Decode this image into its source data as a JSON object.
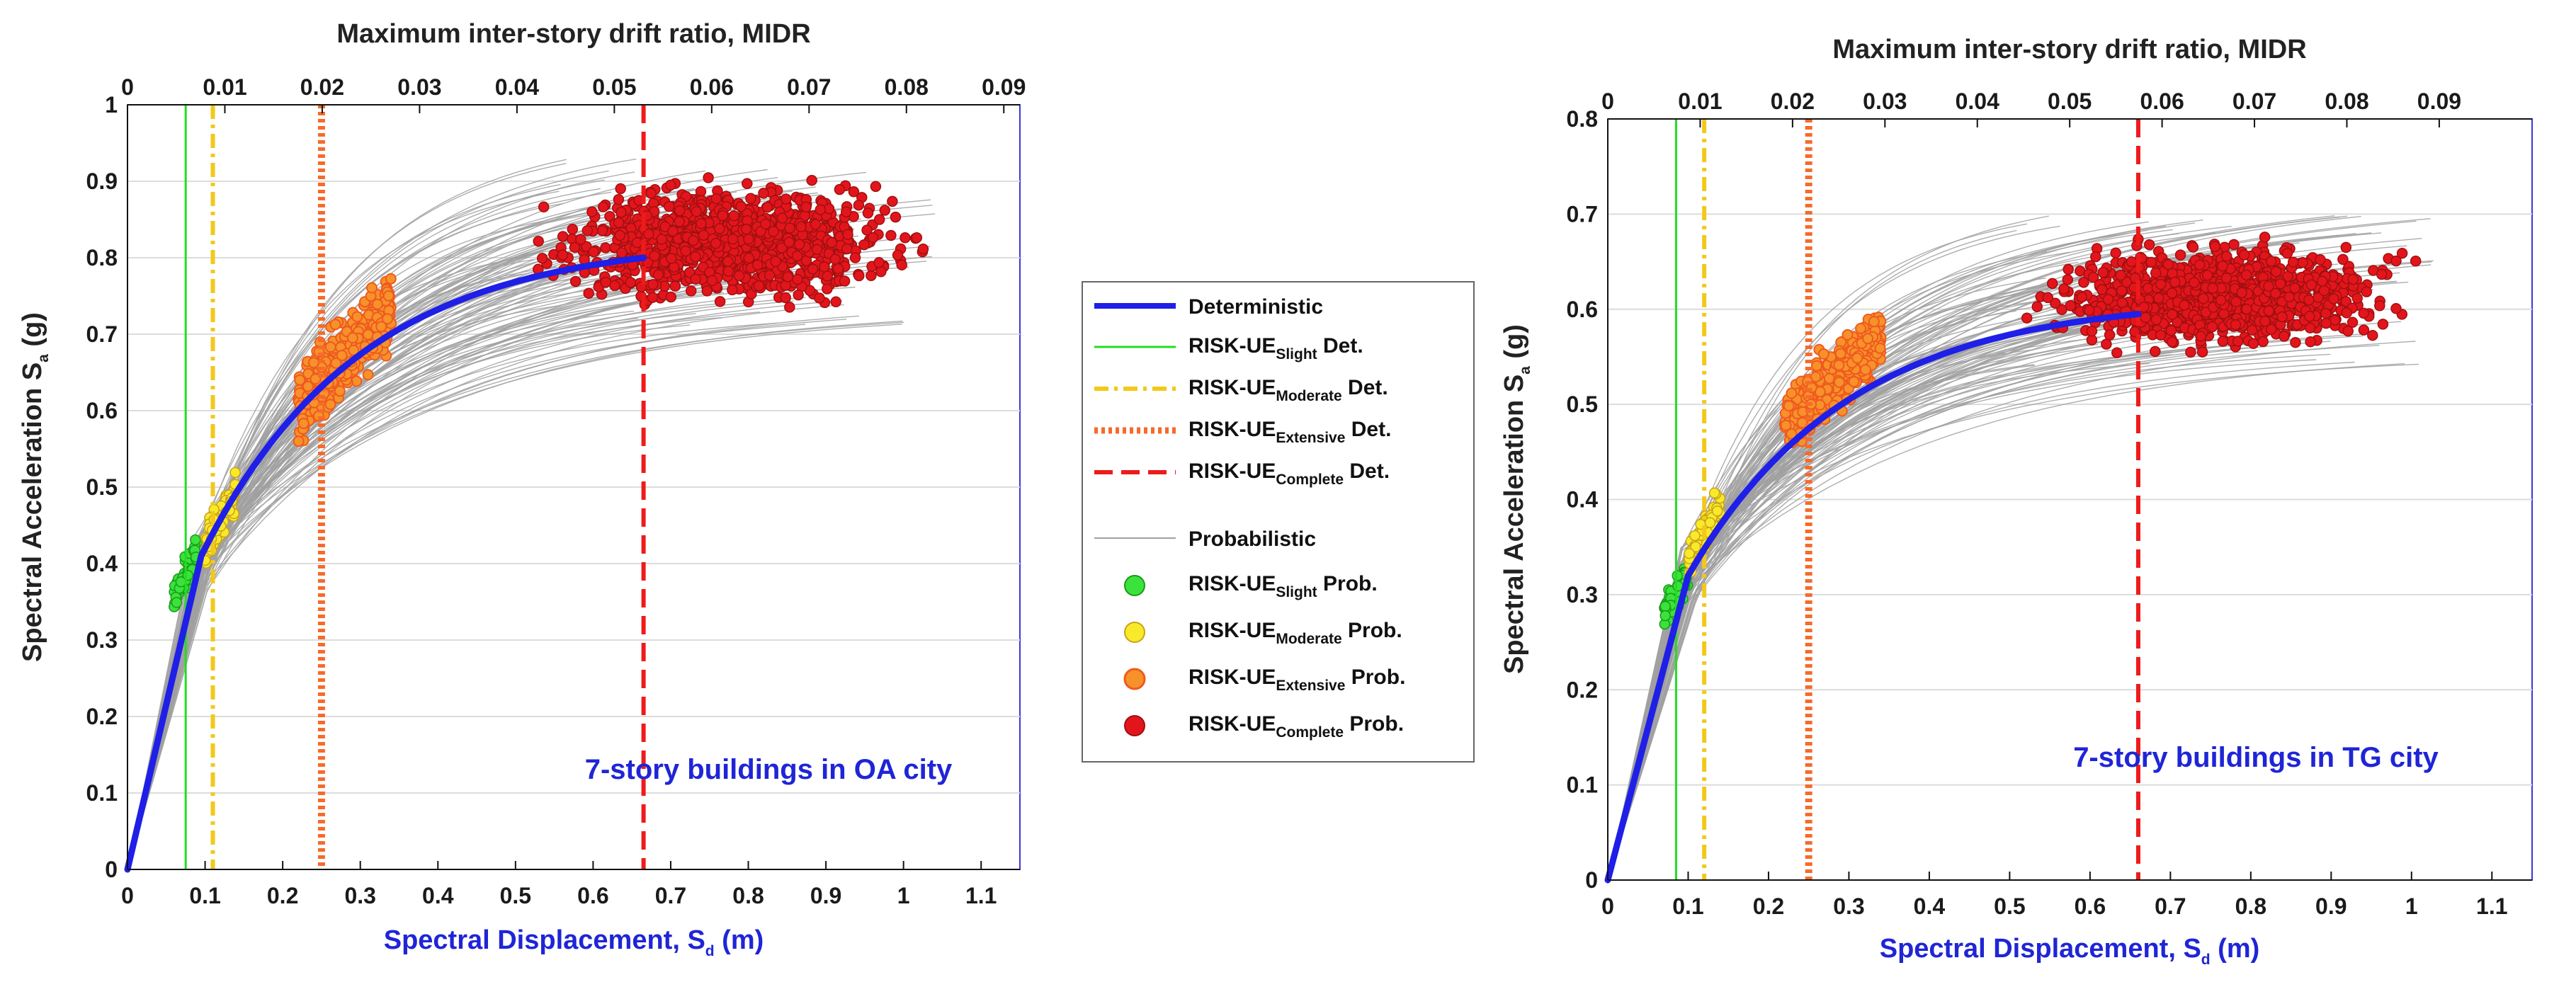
{
  "legend": {
    "entries": [
      {
        "key": "det",
        "base": "Deterministic",
        "sub": "",
        "suffix": ""
      },
      {
        "key": "slight_det",
        "base": "RISK-UE",
        "sub": "Slight",
        "suffix": " Det."
      },
      {
        "key": "moderate_det",
        "base": "RISK-UE",
        "sub": "Moderate",
        "suffix": " Det."
      },
      {
        "key": "extensive_det",
        "base": "RISK-UE",
        "sub": "Extensive",
        "suffix": " Det."
      },
      {
        "key": "complete_det",
        "base": "RISK-UE",
        "sub": "Complete",
        "suffix": " Det."
      },
      {
        "key": "prob",
        "base": "Probabilistic",
        "sub": "",
        "suffix": ""
      },
      {
        "key": "slight_prob",
        "base": "RISK-UE",
        "sub": "Slight",
        "suffix": " Prob."
      },
      {
        "key": "moderate_prob",
        "base": "RISK-UE",
        "sub": "Moderate",
        "suffix": " Prob."
      },
      {
        "key": "extensive_prob",
        "base": "RISK-UE",
        "sub": "Extensive",
        "suffix": " Prob."
      },
      {
        "key": "complete_prob",
        "base": "RISK-UE",
        "sub": "Complete",
        "suffix": " Prob."
      }
    ]
  },
  "colors": {
    "deterministic": "#1f1fe8",
    "slight": "#22dd22",
    "moderate": "#f2c81b",
    "extensive": "#f76a2a",
    "complete": "#ee1b1b",
    "probabilistic": "#a0a0a0",
    "axis_label": "#1f25d6",
    "slight_marker": "#3be23b",
    "moderate_marker": "#f8ea2a",
    "extensive_marker": "#f7922a",
    "complete_marker": "#e3151c"
  },
  "chart_data": [
    {
      "type": "line",
      "annotation": "7-story buildings in OA city",
      "xlabel": {
        "base": "Spectral Displacement, S",
        "sub": "d",
        "suffix": " (m)"
      },
      "ylabel": {
        "base": "Spectral Acceleration  S",
        "sub": "a",
        "suffix": " (g)"
      },
      "top_xlabel": "Maximum inter-story drift ratio, MIDR",
      "xlim": [
        0,
        1.15
      ],
      "ylim": [
        0,
        1
      ],
      "x_ticks": [
        0,
        0.1,
        0.2,
        0.3,
        0.4,
        0.5,
        0.6,
        0.7,
        0.8,
        0.9,
        1,
        1.1
      ],
      "y_ticks": [
        0,
        0.1,
        0.2,
        0.3,
        0.4,
        0.5,
        0.6,
        0.7,
        0.8,
        0.9,
        1
      ],
      "top_ticks": [
        0,
        0.01,
        0.02,
        0.03,
        0.04,
        0.05,
        0.06,
        0.07,
        0.08,
        0.09
      ],
      "top_per_unit": 0.0797,
      "deterministic": {
        "yield": [
          0.095,
          0.41
        ],
        "ultimate": [
          0.665,
          0.8
        ],
        "curvature": 2.8
      },
      "thresholds": {
        "slight": 0.075,
        "moderate": 0.11,
        "extensive": 0.25,
        "complete": 0.665
      },
      "probabilistic": {
        "count": 110,
        "du_range": [
          0.5,
          1.05
        ],
        "fy_range": [
          0.36,
          0.44
        ],
        "fu_range": [
          0.71,
          0.93
        ]
      },
      "clouds": {
        "slight": {
          "dx": [
            0.06,
            0.09
          ],
          "dy": [
            0.33,
            0.44
          ],
          "n": 60
        },
        "moderate": {
          "dx": [
            0.1,
            0.14
          ],
          "dy": [
            0.4,
            0.52
          ],
          "n": 70
        },
        "extensive": {
          "dx": [
            0.22,
            0.34
          ],
          "dy": [
            0.56,
            0.78
          ],
          "n": 420
        },
        "complete": {
          "dx": [
            0.5,
            1.05
          ],
          "dy": [
            0.7,
            0.94
          ],
          "n": 1100
        }
      }
    },
    {
      "type": "line",
      "annotation": "7-story buildings in TG city",
      "xlabel": {
        "base": "Spectral Displacement, S",
        "sub": "d",
        "suffix": " (m)"
      },
      "ylabel": {
        "base": "Spectral Acceleration  S",
        "sub": "a",
        "suffix": " (g)"
      },
      "top_xlabel": "Maximum inter-story drift ratio, MIDR",
      "xlim": [
        0,
        1.15
      ],
      "ylim": [
        0,
        0.8
      ],
      "x_ticks": [
        0,
        0.1,
        0.2,
        0.3,
        0.4,
        0.5,
        0.6,
        0.7,
        0.8,
        0.9,
        1,
        1.1
      ],
      "y_ticks": [
        0,
        0.1,
        0.2,
        0.3,
        0.4,
        0.5,
        0.6,
        0.7,
        0.8
      ],
      "top_ticks": [
        0,
        0.01,
        0.02,
        0.03,
        0.04,
        0.05,
        0.06,
        0.07,
        0.08,
        0.09
      ],
      "top_per_unit": 0.087,
      "deterministic": {
        "yield": [
          0.1,
          0.32
        ],
        "ultimate": [
          0.66,
          0.595
        ],
        "curvature": 2.8
      },
      "thresholds": {
        "slight": 0.085,
        "moderate": 0.12,
        "extensive": 0.25,
        "complete": 0.66
      },
      "probabilistic": {
        "count": 110,
        "du_range": [
          0.5,
          1.03
        ],
        "fy_range": [
          0.29,
          0.35
        ],
        "fu_range": [
          0.54,
          0.7
        ]
      },
      "clouds": {
        "slight": {
          "dx": [
            0.07,
            0.1
          ],
          "dy": [
            0.26,
            0.34
          ],
          "n": 60
        },
        "moderate": {
          "dx": [
            0.1,
            0.14
          ],
          "dy": [
            0.32,
            0.41
          ],
          "n": 70
        },
        "extensive": {
          "dx": [
            0.22,
            0.34
          ],
          "dy": [
            0.45,
            0.6
          ],
          "n": 420
        },
        "complete": {
          "dx": [
            0.5,
            1.03
          ],
          "dy": [
            0.53,
            0.7
          ],
          "n": 1100
        }
      }
    }
  ]
}
